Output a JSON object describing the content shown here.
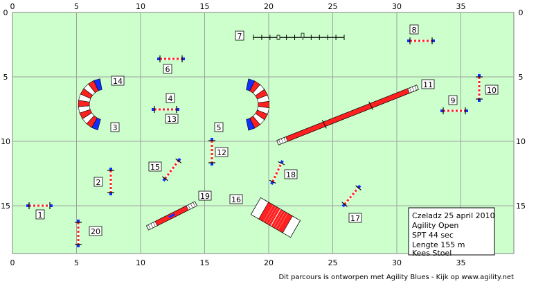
{
  "axes": {
    "x_ticks": [
      "0",
      "5",
      "10",
      "15",
      "20",
      "25",
      "30",
      "35"
    ],
    "y_ticks": [
      "0",
      "5",
      "10",
      "15"
    ]
  },
  "colors": {
    "field": "#ccffcc",
    "grid": "#a0a0a0",
    "red": "#ff2020",
    "blue": "#1030ff",
    "pole": "#000080"
  },
  "obstacles": [
    {
      "type": "hurdle",
      "numbers": [
        "1"
      ]
    },
    {
      "type": "hurdle",
      "numbers": [
        "2"
      ]
    },
    {
      "type": "tunnel",
      "numbers": [
        "3",
        "14"
      ]
    },
    {
      "type": "hurdle",
      "numbers": [
        "4",
        "13"
      ]
    },
    {
      "type": "tunnel",
      "numbers": [
        "5"
      ]
    },
    {
      "type": "hurdle",
      "numbers": [
        "6"
      ]
    },
    {
      "type": "weave-poles",
      "numbers": [
        "7"
      ]
    },
    {
      "type": "hurdle",
      "numbers": [
        "8"
      ]
    },
    {
      "type": "hurdle",
      "numbers": [
        "9"
      ]
    },
    {
      "type": "hurdle",
      "numbers": [
        "10"
      ]
    },
    {
      "type": "dog-walk",
      "numbers": [
        "11"
      ]
    },
    {
      "type": "hurdle",
      "numbers": [
        "12"
      ]
    },
    {
      "type": "hurdle",
      "numbers": [
        "15"
      ]
    },
    {
      "type": "a-frame",
      "numbers": [
        "16"
      ]
    },
    {
      "type": "hurdle",
      "numbers": [
        "17"
      ]
    },
    {
      "type": "hurdle",
      "numbers": [
        "18"
      ]
    },
    {
      "type": "seesaw",
      "numbers": [
        "19"
      ]
    },
    {
      "type": "hurdle",
      "numbers": [
        "20"
      ]
    }
  ],
  "info_box": [
    "Czeladz 25 april 2010",
    "Agility Open",
    "SPT 44 sec",
    "Lengte 155 m",
    "Kees Stoel"
  ],
  "footer": "Dit parcours is ontworpen met Agility Blues - Kijk op www.agility.net"
}
